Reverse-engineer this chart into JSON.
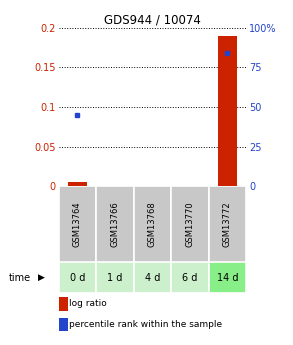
{
  "title": "GDS944 / 10074",
  "samples": [
    "GSM13764",
    "GSM13766",
    "GSM13768",
    "GSM13770",
    "GSM13772"
  ],
  "time_labels": [
    "0 d",
    "1 d",
    "4 d",
    "6 d",
    "14 d"
  ],
  "log_ratio": [
    0.005,
    0.0,
    0.0,
    0.0,
    0.19
  ],
  "percentile_rank": [
    0.09,
    0.0,
    0.0,
    0.0,
    0.168
  ],
  "ylim_left": [
    0,
    0.2
  ],
  "ylim_right": [
    0,
    100
  ],
  "yticks_left": [
    0,
    0.05,
    0.1,
    0.15,
    0.2
  ],
  "yticks_right": [
    0,
    25,
    50,
    75,
    100
  ],
  "ytick_labels_left": [
    "0",
    "0.05",
    "0.1",
    "0.15",
    "0.2"
  ],
  "ytick_labels_right": [
    "0",
    "25",
    "50",
    "75",
    "100%"
  ],
  "bar_color": "#cc2200",
  "point_color": "#2244cc",
  "table_gray": "#c8c8c8",
  "table_green_light": "#ccf0cc",
  "table_green_dark": "#88ee88",
  "bg_color": "#ffffff",
  "legend_log_ratio": "log ratio",
  "legend_percentile": "percentile rank within the sample"
}
